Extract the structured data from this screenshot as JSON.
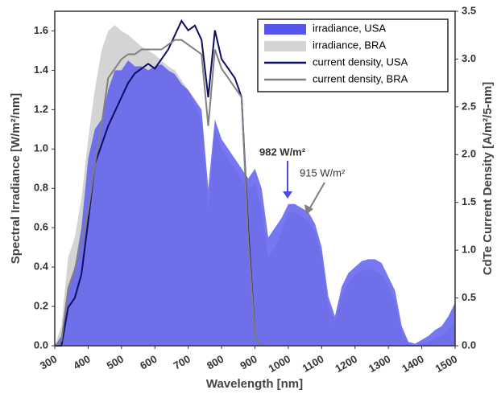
{
  "chart_data": {
    "type": "line",
    "xlabel": "Wavelength [nm]",
    "ylabel": "Spectral Irradiance [W/m²/nm]",
    "y2label": "CdTe Current Density [A/m²/5-nm]",
    "x": [
      300,
      320,
      340,
      360,
      380,
      400,
      420,
      440,
      460,
      480,
      500,
      520,
      540,
      560,
      580,
      600,
      620,
      640,
      660,
      680,
      700,
      720,
      740,
      760,
      780,
      800,
      820,
      840,
      860,
      880,
      900,
      920,
      940,
      960,
      980,
      1000,
      1020,
      1040,
      1060,
      1080,
      1100,
      1120,
      1140,
      1160,
      1180,
      1200,
      1220,
      1240,
      1260,
      1280,
      1300,
      1320,
      1340,
      1360,
      1380,
      1400,
      1420,
      1440,
      1460,
      1480,
      1500
    ],
    "series": [
      {
        "name": "irradiance, USA",
        "type": "area",
        "color": "#5555ee",
        "values": [
          0,
          0.05,
          0.3,
          0.4,
          0.6,
          0.95,
          1.1,
          1.15,
          1.3,
          1.4,
          1.4,
          1.45,
          1.42,
          1.42,
          1.4,
          1.42,
          1.43,
          1.4,
          1.38,
          1.33,
          1.3,
          1.25,
          1.2,
          0.8,
          1.15,
          1.05,
          1.0,
          0.95,
          0.9,
          0.85,
          0.9,
          0.8,
          0.55,
          0.6,
          0.65,
          0.72,
          0.72,
          0.7,
          0.68,
          0.62,
          0.5,
          0.25,
          0.15,
          0.3,
          0.37,
          0.4,
          0.43,
          0.44,
          0.44,
          0.42,
          0.35,
          0.28,
          0.1,
          0.02,
          0.01,
          0.03,
          0.05,
          0.08,
          0.1,
          0.15,
          0.22
        ]
      },
      {
        "name": "irradiance, BRA",
        "type": "area",
        "color": "#d4d4d4",
        "values": [
          0,
          0.1,
          0.45,
          0.55,
          0.75,
          1.05,
          1.3,
          1.5,
          1.6,
          1.63,
          1.6,
          1.58,
          1.55,
          1.52,
          1.5,
          1.48,
          1.45,
          1.42,
          1.4,
          1.35,
          1.3,
          1.22,
          1.15,
          0.7,
          1.1,
          1.0,
          0.95,
          0.9,
          0.85,
          0.8,
          0.82,
          0.7,
          0.45,
          0.5,
          0.58,
          0.68,
          0.68,
          0.66,
          0.63,
          0.58,
          0.45,
          0.2,
          0.12,
          0.25,
          0.32,
          0.36,
          0.38,
          0.39,
          0.38,
          0.36,
          0.3,
          0.22,
          0.07,
          0.01,
          0,
          0.01,
          0.02,
          0.04,
          0.05,
          0.08,
          0.12
        ]
      },
      {
        "name": "current density, USA",
        "type": "line",
        "axis": "y2",
        "color": "#0d0d66",
        "values": [
          0,
          0,
          0.4,
          0.5,
          0.75,
          1.3,
          1.9,
          2.1,
          2.3,
          2.45,
          2.6,
          2.75,
          2.85,
          2.9,
          2.95,
          2.9,
          3.0,
          3.1,
          3.25,
          3.4,
          3.3,
          3.35,
          3.2,
          2.6,
          3.3,
          3.0,
          2.9,
          2.8,
          2.6,
          1.2,
          0.1,
          0,
          null,
          null,
          null,
          null,
          null,
          null,
          null,
          null,
          null,
          null,
          null,
          null,
          null,
          null,
          null,
          null,
          null,
          null,
          null,
          null,
          null,
          null,
          null,
          null,
          null,
          null,
          null,
          null,
          null
        ]
      },
      {
        "name": "current density, BRA",
        "type": "line",
        "axis": "y2",
        "color": "#808080",
        "values": [
          0,
          0.05,
          0.6,
          0.8,
          1.1,
          1.4,
          1.9,
          2.3,
          2.8,
          2.9,
          3.0,
          3.05,
          3.05,
          3.1,
          3.1,
          3.1,
          3.1,
          3.15,
          3.2,
          3.2,
          3.15,
          3.1,
          3.05,
          2.3,
          3.1,
          2.9,
          2.8,
          2.7,
          2.6,
          1.1,
          0.1,
          0,
          null,
          null,
          null,
          null,
          null,
          null,
          null,
          null,
          null,
          null,
          null,
          null,
          null,
          null,
          null,
          null,
          null,
          null,
          null,
          null,
          null,
          null,
          null,
          null,
          null,
          null,
          null,
          null,
          null
        ]
      }
    ],
    "annotations": [
      {
        "text": "982 W/m²",
        "color": "#4a4ae8"
      },
      {
        "text": "915 W/m²",
        "color": "#808080"
      }
    ],
    "xlim": [
      300,
      1500
    ],
    "xticks": [
      300,
      400,
      500,
      600,
      700,
      800,
      900,
      1000,
      1100,
      1200,
      1300,
      1400,
      1500
    ],
    "ylim": [
      0,
      1.7
    ],
    "yticks": [
      {
        "value": 0,
        "label": "0.0"
      },
      0.2,
      0.4,
      0.6,
      0.8,
      {
        "value": 1,
        "label": "1.0"
      },
      1.2,
      1.4,
      1.6
    ],
    "y2lim": [
      0,
      3.5
    ],
    "y2ticks": [
      {
        "value": 0,
        "label": "0.0"
      },
      0.5,
      {
        "value": 1,
        "label": "1.0"
      },
      1.5,
      {
        "value": 2,
        "label": "2.0"
      },
      2.5,
      {
        "value": 3,
        "label": "3.0"
      },
      3.5
    ],
    "legend": "upper right"
  }
}
